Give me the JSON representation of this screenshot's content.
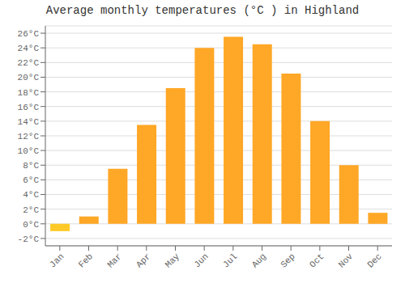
{
  "chart_data": {
    "type": "bar",
    "title": "Average monthly temperatures (°C ) in Highland",
    "categories": [
      "Jan",
      "Feb",
      "Mar",
      "Apr",
      "May",
      "Jun",
      "Jul",
      "Aug",
      "Sep",
      "Oct",
      "Nov",
      "Dec"
    ],
    "values": [
      -1.0,
      1.0,
      7.5,
      13.5,
      18.5,
      24.0,
      25.5,
      24.5,
      20.5,
      14.0,
      8.0,
      1.5
    ],
    "colors": [
      "#FFCA28",
      "#FFA726",
      "#FFA726",
      "#FFA726",
      "#FFA726",
      "#FFA726",
      "#FFA726",
      "#FFA726",
      "#FFA726",
      "#FFA726",
      "#FFA726",
      "#FFA726"
    ],
    "ylim": [
      -3,
      27
    ],
    "yticks": [
      {
        "value": -2,
        "label": "-2°C"
      },
      {
        "value": 0,
        "label": "0°C"
      },
      {
        "value": 2,
        "label": "2°C"
      },
      {
        "value": 4,
        "label": "4°C"
      },
      {
        "value": 6,
        "label": "6°C"
      },
      {
        "value": 8,
        "label": "8°C"
      },
      {
        "value": 10,
        "label": "10°C"
      },
      {
        "value": 12,
        "label": "12°C"
      },
      {
        "value": 14,
        "label": "14°C"
      },
      {
        "value": 16,
        "label": "16°C"
      },
      {
        "value": 18,
        "label": "18°C"
      },
      {
        "value": 20,
        "label": "20°C"
      },
      {
        "value": 22,
        "label": "22°C"
      },
      {
        "value": 24,
        "label": "24°C"
      },
      {
        "value": 26,
        "label": "26°C"
      }
    ],
    "grid": true
  }
}
